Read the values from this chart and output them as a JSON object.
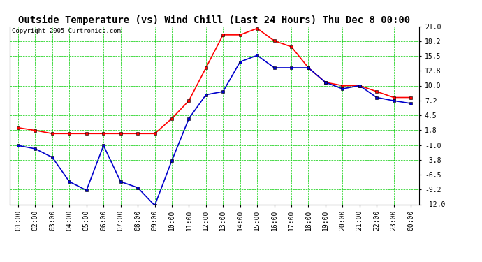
{
  "title": "Outside Temperature (vs) Wind Chill (Last 24 Hours) Thu Dec 8 00:00",
  "copyright": "Copyright 2005 Curtronics.com",
  "x_labels": [
    "01:00",
    "02:00",
    "03:00",
    "04:00",
    "05:00",
    "06:00",
    "07:00",
    "08:00",
    "09:00",
    "10:00",
    "11:00",
    "12:00",
    "13:00",
    "14:00",
    "15:00",
    "16:00",
    "17:00",
    "18:00",
    "19:00",
    "20:00",
    "21:00",
    "22:00",
    "23:00",
    "00:00"
  ],
  "outside_temp": [
    2.2,
    1.7,
    1.1,
    1.1,
    1.1,
    1.1,
    1.1,
    1.1,
    1.1,
    3.9,
    7.2,
    13.3,
    19.4,
    19.4,
    20.6,
    18.3,
    17.2,
    13.3,
    10.6,
    10.0,
    10.0,
    8.9,
    7.8,
    7.8
  ],
  "wind_chill": [
    -1.1,
    -1.7,
    -3.3,
    -7.8,
    -9.4,
    -1.1,
    -7.8,
    -8.9,
    -12.2,
    -3.9,
    3.9,
    8.3,
    8.9,
    14.4,
    15.6,
    13.3,
    13.3,
    13.3,
    10.6,
    9.4,
    10.0,
    7.8,
    7.2,
    6.7
  ],
  "ylim": [
    -12.0,
    21.0
  ],
  "yticks": [
    -12.0,
    -9.2,
    -6.5,
    -3.8,
    -1.0,
    1.8,
    4.5,
    7.2,
    10.0,
    12.8,
    15.5,
    18.2,
    21.0
  ],
  "outside_color": "#ff0000",
  "wind_chill_color": "#0000cc",
  "bg_color": "#ffffff",
  "grid_color": "#00cc00",
  "title_fontsize": 10,
  "copyright_fontsize": 6.5,
  "tick_fontsize": 7,
  "marker": "s",
  "marker_size": 2.5,
  "line_width": 1.2
}
